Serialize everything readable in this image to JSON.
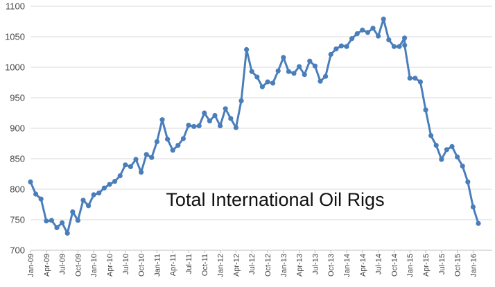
{
  "chart_data": {
    "type": "line",
    "title": "Total International Oil Rigs",
    "xlabel": "",
    "ylabel": "",
    "ylim": [
      700,
      1100
    ],
    "yticks": [
      700,
      750,
      800,
      850,
      900,
      950,
      1000,
      1050,
      1100
    ],
    "grid": true,
    "legend": "none",
    "x_tick_labels": [
      "Jan-09",
      "Apr-09",
      "Jul-09",
      "Oct-09",
      "Jan-10",
      "Apr-10",
      "Jul-10",
      "Oct-10",
      "Jan-11",
      "Apr-11",
      "Jul-11",
      "Oct-11",
      "Jan-12",
      "Apr-12",
      "Jul-12",
      "Oct-12",
      "Jan-13",
      "Apr-13",
      "Jul-13",
      "Oct-13",
      "Jan-14",
      "Apr-14",
      "Jul-14",
      "Oct-14",
      "Jan-15",
      "Apr-15",
      "Jul-15",
      "Oct-15",
      "Jan-16"
    ],
    "series": [
      {
        "color": "#4a7ebb",
        "points": [
          {
            "x": "Jan-09",
            "y": 812
          },
          {
            "x": "Feb-09",
            "y": 792
          },
          {
            "x": "Mar-09",
            "y": 784
          },
          {
            "x": "Apr-09",
            "y": 748
          },
          {
            "x": "May-09",
            "y": 749
          },
          {
            "x": "Jun-09",
            "y": 737
          },
          {
            "x": "Jul-09",
            "y": 745
          },
          {
            "x": "Aug-09",
            "y": 728
          },
          {
            "x": "Sep-09",
            "y": 763
          },
          {
            "x": "Oct-09",
            "y": 749
          },
          {
            "x": "Nov-09",
            "y": 782
          },
          {
            "x": "Dec-09",
            "y": 773
          },
          {
            "x": "Jan-10",
            "y": 791
          },
          {
            "x": "Feb-10",
            "y": 794
          },
          {
            "x": "Mar-10",
            "y": 802
          },
          {
            "x": "Apr-10",
            "y": 808
          },
          {
            "x": "May-10",
            "y": 813
          },
          {
            "x": "Jun-10",
            "y": 822
          },
          {
            "x": "Jul-10",
            "y": 840
          },
          {
            "x": "Aug-10",
            "y": 837
          },
          {
            "x": "Sep-10",
            "y": 849
          },
          {
            "x": "Oct-10",
            "y": 828
          },
          {
            "x": "Nov-10",
            "y": 857
          },
          {
            "x": "Dec-10",
            "y": 852
          },
          {
            "x": "Jan-11",
            "y": 878
          },
          {
            "x": "Feb-11",
            "y": 914
          },
          {
            "x": "Mar-11",
            "y": 882
          },
          {
            "x": "Apr-11",
            "y": 864
          },
          {
            "x": "May-11",
            "y": 872
          },
          {
            "x": "Jun-11",
            "y": 883
          },
          {
            "x": "Jul-11",
            "y": 905
          },
          {
            "x": "Aug-11",
            "y": 903
          },
          {
            "x": "Sep-11",
            "y": 904
          },
          {
            "x": "Oct-11",
            "y": 925
          },
          {
            "x": "Nov-11",
            "y": 912
          },
          {
            "x": "Dec-11",
            "y": 921
          },
          {
            "x": "Jan-12",
            "y": 904
          },
          {
            "x": "Feb-12",
            "y": 932
          },
          {
            "x": "Mar-12",
            "y": 916
          },
          {
            "x": "Apr-12",
            "y": 901
          },
          {
            "x": "May-12",
            "y": 945
          },
          {
            "x": "Jun-12",
            "y": 1029
          },
          {
            "x": "Jul-12",
            "y": 993
          },
          {
            "x": "Aug-12",
            "y": 984
          },
          {
            "x": "Sep-12",
            "y": 968
          },
          {
            "x": "Oct-12",
            "y": 976
          },
          {
            "x": "Nov-12",
            "y": 974
          },
          {
            "x": "Dec-12",
            "y": 994
          },
          {
            "x": "Jan-13",
            "y": 1016
          },
          {
            "x": "Feb-13",
            "y": 993
          },
          {
            "x": "Mar-13",
            "y": 990
          },
          {
            "x": "Apr-13",
            "y": 1001
          },
          {
            "x": "May-13",
            "y": 988
          },
          {
            "x": "Jun-13",
            "y": 1010
          },
          {
            "x": "Jul-13",
            "y": 1002
          },
          {
            "x": "Aug-13",
            "y": 977
          },
          {
            "x": "Sep-13",
            "y": 985
          },
          {
            "x": "Oct-13",
            "y": 1021
          },
          {
            "x": "Nov-13",
            "y": 1030
          },
          {
            "x": "Dec-13",
            "y": 1035
          },
          {
            "x": "Jan-14",
            "y": 1034
          },
          {
            "x": "Feb-14",
            "y": 1047
          },
          {
            "x": "Mar-14",
            "y": 1055
          },
          {
            "x": "Apr-14",
            "y": 1061
          },
          {
            "x": "May-14",
            "y": 1057
          },
          {
            "x": "Jun-14",
            "y": 1064
          },
          {
            "x": "Jul-14",
            "y": 1051
          },
          {
            "x": "Aug-14",
            "y": 1079
          },
          {
            "x": "Sep-14",
            "y": 1045
          },
          {
            "x": "Oct-14",
            "y": 1034
          },
          {
            "x": "Nov-14",
            "y": 1034
          },
          {
            "x": "Dec-14",
            "y": 1048
          },
          {
            "x": "Dec-14",
            "y": 1036
          },
          {
            "x": "Jan-15",
            "y": 982
          },
          {
            "x": "Feb-15",
            "y": 982
          },
          {
            "x": "Mar-15",
            "y": 976
          },
          {
            "x": "Apr-15",
            "y": 930
          },
          {
            "x": "May-15",
            "y": 888
          },
          {
            "x": "Jun-15",
            "y": 872
          },
          {
            "x": "Jul-15",
            "y": 849
          },
          {
            "x": "Aug-15",
            "y": 865
          },
          {
            "x": "Sep-15",
            "y": 870
          },
          {
            "x": "Oct-15",
            "y": 853
          },
          {
            "x": "Nov-15",
            "y": 838
          },
          {
            "x": "Dec-15",
            "y": 812
          },
          {
            "x": "Jan-16",
            "y": 771
          },
          {
            "x": "Feb-16",
            "y": 744
          }
        ]
      }
    ]
  }
}
